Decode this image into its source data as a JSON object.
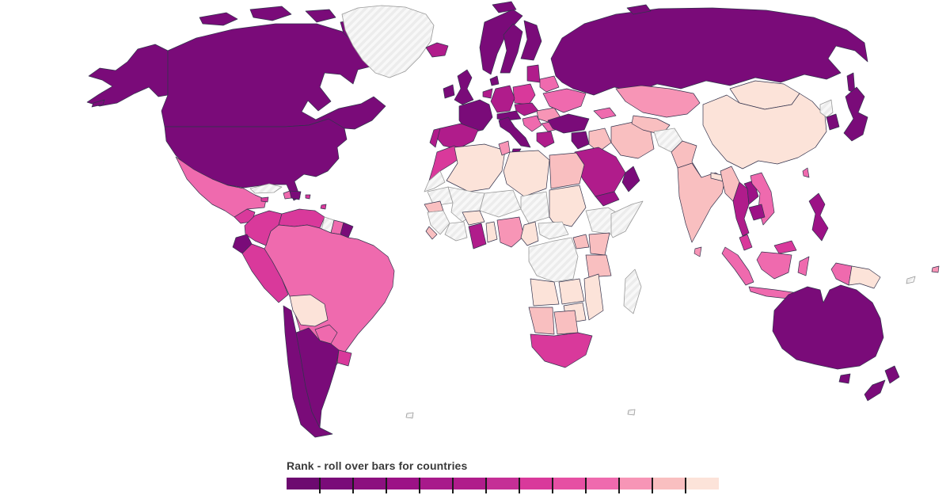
{
  "page": {
    "background": "#ffffff"
  },
  "legend": {
    "title": "Rank - roll over bars for countries",
    "title_color": "#3a3a3a",
    "tick_color": "#1b1b1b",
    "colors": [
      "#6d0a70",
      "#7a0b79",
      "#8c107f",
      "#9c1286",
      "#a81a8b",
      "#b01c8b",
      "#c52f96",
      "#d9399b",
      "#e64fa3",
      "#ef6aae",
      "#f795b6",
      "#f9bfc0",
      "#fce3d9"
    ]
  },
  "map": {
    "ocean_color": "#ffffff",
    "border_color": "#33334d",
    "no_data": {
      "fill": "#ececec",
      "stripe": "#f8f8f8",
      "border": "#9a9a9a",
      "regions": [
        "greenland",
        "cuba",
        "guyana",
        "western_sahara",
        "mauritania",
        "mali",
        "niger",
        "chad",
        "ethiopia",
        "somalia",
        "guinea",
        "ivory_coast",
        "central_african_republic",
        "drc",
        "madagascar",
        "afghanistan",
        "north_korea",
        "new_caledonia",
        "falklands",
        "kerguelen"
      ]
    },
    "regions": {
      "canada": "#7a0b79",
      "usa": "#7a0b79",
      "mexico": "#ef6aae",
      "iceland": "#b01c8b",
      "guatemala": "#d9399b",
      "honduras": "#f9bfc0",
      "nicaragua": "#f9bfc0",
      "costa_rica": "#9c1286",
      "panama": "#9c1286",
      "jamaica": "#d9399b",
      "haiti": "#ef6aae",
      "dominican_republic": "#7a0b79",
      "puerto_rico": "#d9399b",
      "colombia": "#d9399b",
      "venezuela": "#d9399b",
      "suriname": "#ef6aae",
      "french_guiana": "#7a0b79",
      "ecuador": "#7a0b79",
      "peru": "#d9399b",
      "brazil": "#ef6aae",
      "bolivia": "#fce3d9",
      "paraguay": "#ef6aae",
      "chile": "#7a0b79",
      "argentina": "#7a0b79",
      "uruguay": "#d9399b",
      "trinidad": "#d9399b",
      "ireland": "#7a0b79",
      "uk": "#7a0b79",
      "norway": "#7a0b79",
      "sweden": "#7a0b79",
      "finland": "#7a0b79",
      "denmark": "#7a0b79",
      "baltics": "#b01c8b",
      "belarus": "#ef6aae",
      "poland": "#d9399b",
      "germany": "#b01c8b",
      "benelux": "#b01c8b",
      "france": "#7a0b79",
      "spain": "#b01c8b",
      "portugal": "#b01c8b",
      "alps": "#7a0b79",
      "czech_hungary": "#b01c8b",
      "italy": "#7a0b79",
      "balkans": "#ef6aae",
      "romania": "#f795b6",
      "bulgaria": "#ef6aae",
      "greece": "#b01c8b",
      "ukraine": "#ef6aae",
      "russia": "#7a0b79",
      "turkey": "#7a0b79",
      "levant": "#7a0b79",
      "iraq": "#f9bfc0",
      "iran": "#f9bfc0",
      "saudi_arabia": "#b01c8b",
      "yemen": "#9c1286",
      "oman": "#7a0b79",
      "caucasus": "#ef6aae",
      "kazakhstan": "#f795b6",
      "uzbekistan": "#f9bfc0",
      "pakistan": "#f9bfc0",
      "india": "#f9bfc0",
      "sri_lanka": "#f795b6",
      "nepal": "#fce3d9",
      "bangladesh": "#f9bfc0",
      "china": "#fce3d9",
      "mongolia": "#fce3d9",
      "taiwan": "#ef6aae",
      "south_korea": "#7a0b79",
      "japan": "#7a0b79",
      "myanmar": "#f9bfc0",
      "thailand": "#b01c8b",
      "laos": "#9c1286",
      "cambodia": "#9c1286",
      "vietnam": "#ef6aae",
      "malaysia": "#d9399b",
      "indonesia": "#ef6aae",
      "philippines": "#9c1286",
      "png": "#fce3d9",
      "australia": "#7a0b79",
      "new_zealand": "#7a0b79",
      "fiji": "#f795b6",
      "morocco": "#d9399b",
      "algeria": "#fce3d9",
      "tunisia": "#f795b6",
      "libya": "#fce3d9",
      "egypt": "#f9bfc0",
      "sudan": "#fce3d9",
      "senegal": "#f9bfc0",
      "sierra_leone": "#f9bfc0",
      "burkina_faso": "#fce3d9",
      "ghana": "#b01c8b",
      "togo_benin": "#fce3d9",
      "nigeria": "#f795b6",
      "cameroon": "#fce3d9",
      "uganda": "#f9bfc0",
      "kenya": "#f9bfc0",
      "tanzania": "#f9bfc0",
      "angola": "#fce3d9",
      "zambia": "#fce3d9",
      "mozambique": "#fce3d9",
      "zimbabwe": "#fce3d9",
      "namibia": "#f9bfc0",
      "botswana": "#f9bfc0",
      "south_africa": "#d9399b"
    }
  }
}
